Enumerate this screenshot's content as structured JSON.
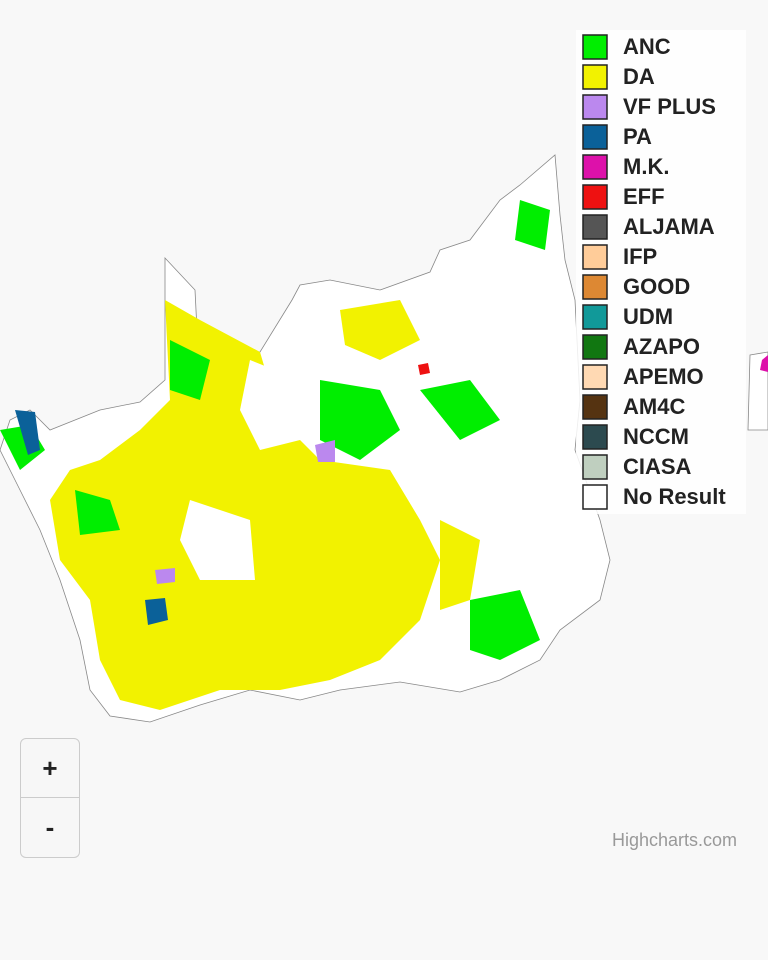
{
  "legend": {
    "items": [
      {
        "name": "ANC",
        "color": "#00ee00"
      },
      {
        "name": "DA",
        "color": "#f2f200"
      },
      {
        "name": "VF PLUS",
        "color": "#bb88ee"
      },
      {
        "name": "PA",
        "color": "#0b6199"
      },
      {
        "name": "M.K.",
        "color": "#dd11aa"
      },
      {
        "name": "EFF",
        "color": "#ee1111"
      },
      {
        "name": "ALJAMA",
        "color": "#555555"
      },
      {
        "name": "IFP",
        "color": "#ffcc99"
      },
      {
        "name": "GOOD",
        "color": "#dd8833"
      },
      {
        "name": "UDM",
        "color": "#119999"
      },
      {
        "name": "AZAPO",
        "color": "#117711"
      },
      {
        "name": "APEMO",
        "color": "#ffd9b3"
      },
      {
        "name": "AM4C",
        "color": "#553311"
      },
      {
        "name": "NCCM",
        "color": "#2c4a4f"
      },
      {
        "name": "CIASA",
        "color": "#bfcfbf"
      },
      {
        "name": "No Result",
        "color": "#ffffff"
      }
    ]
  },
  "zoom": {
    "in": "+",
    "out": "-"
  },
  "credits": "Highcharts.com"
}
